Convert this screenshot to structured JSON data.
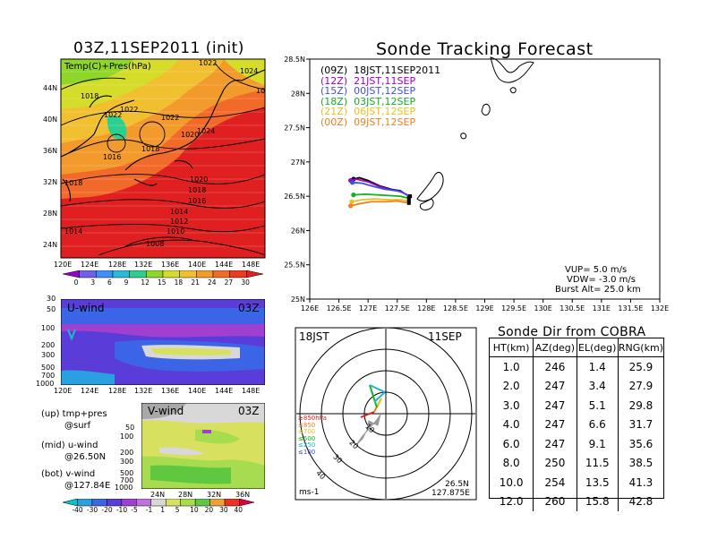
{
  "left": {
    "title": "03Z,11SEP2011 (init)",
    "map_label": "Temp(C)+Pres(hPa)",
    "isobar_labels": [
      "1022",
      "1024",
      "1018",
      "1022",
      "1022",
      "1022",
      "1020",
      "1024",
      "1018",
      "1016",
      "1018",
      "1020",
      "1018",
      "1016",
      "1014",
      "1012",
      "1010",
      "1014",
      "1008",
      "10"
    ],
    "lat_ticks": [
      "44N",
      "40N",
      "36N",
      "32N",
      "28N",
      "24N"
    ],
    "lon_ticks": [
      "120E",
      "124E",
      "128E",
      "132E",
      "136E",
      "140E",
      "144E",
      "148E"
    ],
    "temp_colorbar": {
      "labels": [
        "0",
        "3",
        "6",
        "9",
        "12",
        "15",
        "18",
        "21",
        "24",
        "27",
        "30"
      ],
      "colors": [
        "#9a00c8",
        "#7060e8",
        "#3f8ff5",
        "#28bcd8",
        "#2ccf8e",
        "#8fd62a",
        "#d5dc2a",
        "#f0c030",
        "#f39a2c",
        "#f26a2a",
        "#ee3a22",
        "#e02020"
      ]
    },
    "u_wind": {
      "label": "U-wind",
      "time": "03Z",
      "p_ticks": [
        "30",
        "50",
        "100",
        "200",
        "300",
        "500",
        "700",
        "1000"
      ]
    },
    "v_wind": {
      "label": "V-wind",
      "time": "03Z",
      "p_ticks": [
        "50",
        "100",
        "200",
        "300",
        "500",
        "700",
        "1000"
      ],
      "lat_ticks": [
        "24N",
        "28N",
        "32N",
        "36N"
      ]
    },
    "notes": [
      {
        "line1": "(up) tmp+pres",
        "line2": "@surf"
      },
      {
        "line1": "(mid) u-wind",
        "line2": "@26.50N"
      },
      {
        "line1": "(bot) v-wind",
        "line2": "@127.84E"
      }
    ],
    "wind_colorbar": {
      "labels": [
        "-40",
        "-30",
        "-20",
        "-10",
        "-5",
        "-1",
        "1",
        "5",
        "10",
        "20",
        "30",
        "40"
      ],
      "colors": [
        "#00c8c8",
        "#2aa0e0",
        "#3c64e6",
        "#5a3cd8",
        "#a040d0",
        "#c070e0",
        "#d8d8d8",
        "#d8e060",
        "#a8dc50",
        "#60c840",
        "#f0a030",
        "#f03020",
        "#e00040"
      ]
    }
  },
  "track": {
    "title": "Sonde Tracking Forecast",
    "legend": [
      {
        "label": "(09Z)  18JST,11SEP2011",
        "color": "#000000"
      },
      {
        "label": "(12Z)  21JST,11SEP",
        "color": "#a000c8"
      },
      {
        "label": "(15Z)  00JST,12SEP",
        "color": "#3c50e6"
      },
      {
        "label": "(18Z)  03JST,12SEP",
        "color": "#10b020"
      },
      {
        "label": "(21Z)  06JST,12SEP",
        "color": "#e8c020"
      },
      {
        "label": "(00Z)  09JST,12SEP",
        "color": "#f08020"
      }
    ],
    "info": [
      "VUP=  5.0  m/s",
      "VDW= -3.0  m/s",
      "Burst Alt=  25.0  km"
    ]
  },
  "polar": {
    "time_label": "18JST",
    "date_label": "11SEP",
    "units": "ms-1",
    "loc_lat": "26.5N",
    "loc_lon": "127.875E",
    "ring_labels": [
      "10",
      "20",
      "30",
      "40"
    ],
    "legend": [
      {
        "label": "≥850hPa",
        "color": "#e02020"
      },
      {
        "label": "≤850",
        "color": "#f08020"
      },
      {
        "label": "≤700",
        "color": "#e8c020"
      },
      {
        "label": "≤500",
        "color": "#10b020"
      },
      {
        "label": "≤250",
        "color": "#20b8c8"
      },
      {
        "label": "≤100",
        "color": "#3c50e6"
      }
    ]
  },
  "table": {
    "title": "Sonde Dir from COBRA",
    "headers": [
      "HT(km)",
      "AZ(deg)",
      "EL(deg)",
      "RNG(km)"
    ],
    "rows": [
      [
        "1.0",
        "246",
        "1.4",
        "25.9"
      ],
      [
        "2.0",
        "247",
        "3.4",
        "27.9"
      ],
      [
        "3.0",
        "247",
        "5.1",
        "29.8"
      ],
      [
        "4.0",
        "247",
        "6.6",
        "31.7"
      ],
      [
        "6.0",
        "247",
        "9.1",
        "35.6"
      ],
      [
        "8.0",
        "250",
        "11.5",
        "38.5"
      ],
      [
        "10.0",
        "254",
        "13.5",
        "41.3"
      ],
      [
        "12.0",
        "260",
        "15.8",
        "42.8"
      ]
    ]
  },
  "chart_data": [
    {
      "type": "line",
      "title": "Sonde Tracking Forecast",
      "xlabel": "",
      "ylabel": "",
      "xlim": [
        126,
        132
      ],
      "ylim": [
        25,
        28.5
      ],
      "x_ticks": [
        "126E",
        "126.5E",
        "127E",
        "127.5E",
        "128E",
        "128.5E",
        "129E",
        "129.5E",
        "130E",
        "130.5E",
        "131E",
        "131.5E",
        "132E"
      ],
      "y_ticks": [
        "25N",
        "25.5N",
        "26N",
        "26.5N",
        "27N",
        "27.5N",
        "28N",
        "28.5N"
      ],
      "series": [
        {
          "name": "(09Z)  18JST,11SEP2011",
          "x": [
            126.75,
            126.85,
            127.0,
            127.2,
            127.4,
            127.55,
            127.7
          ],
          "y": [
            26.75,
            26.77,
            26.73,
            26.65,
            26.6,
            26.58,
            26.5
          ]
        },
        {
          "name": "(12Z)  21JST,11SEP",
          "x": [
            126.7,
            126.8,
            127.0,
            127.2,
            127.4,
            127.55,
            127.72
          ],
          "y": [
            26.73,
            26.75,
            26.71,
            26.64,
            26.59,
            26.57,
            26.5
          ]
        },
        {
          "name": "(15Z)  00JST,12SEP",
          "x": [
            126.73,
            126.9,
            127.1,
            127.3,
            127.5,
            127.6,
            127.72
          ],
          "y": [
            26.7,
            26.69,
            26.64,
            26.6,
            26.58,
            26.55,
            26.5
          ]
        },
        {
          "name": "(18Z)  03JST,12SEP",
          "x": [
            126.75,
            126.95,
            127.15,
            127.35,
            127.55,
            127.7
          ],
          "y": [
            26.52,
            26.53,
            26.52,
            26.51,
            26.5,
            26.47
          ]
        },
        {
          "name": "(21Z)  06JST,12SEP",
          "x": [
            126.72,
            126.9,
            127.1,
            127.35,
            127.55,
            127.7
          ],
          "y": [
            26.42,
            26.45,
            26.46,
            26.45,
            26.45,
            26.43
          ]
        },
        {
          "name": "(00Z)  09JST,12SEP",
          "x": [
            126.7,
            126.85,
            127.05,
            127.3,
            127.5,
            127.7
          ],
          "y": [
            26.36,
            26.39,
            26.42,
            26.42,
            26.43,
            26.4
          ]
        }
      ]
    },
    {
      "type": "scatter",
      "title": "Sonde Dir from COBRA",
      "xlabel": "RNG(km)",
      "ylabel": "HT(km)",
      "series": [
        {
          "name": "HT(km) vs RNG(km)",
          "x": [
            25.9,
            27.9,
            29.8,
            31.7,
            35.6,
            38.5,
            41.3,
            42.8
          ],
          "y": [
            1.0,
            2.0,
            3.0,
            4.0,
            6.0,
            8.0,
            10.0,
            12.0
          ]
        }
      ]
    }
  ]
}
